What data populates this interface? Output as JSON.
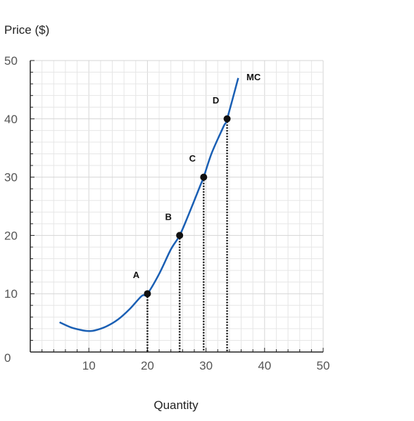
{
  "chart_data": {
    "type": "line",
    "ylabel": "Price ($)",
    "xlabel": "Quantity",
    "xlim": [
      0,
      50
    ],
    "ylim": [
      0,
      50
    ],
    "x_ticks": [
      "10",
      "20",
      "30",
      "40",
      "50"
    ],
    "y_ticks": [
      "0",
      "10",
      "20",
      "30",
      "40",
      "50"
    ],
    "grid": true,
    "minor_grid_step": 2,
    "series": [
      {
        "name": "MC",
        "color": "#1a5fb4",
        "x": [
          5,
          7,
          9,
          10,
          11,
          13,
          15,
          17,
          19,
          20,
          22,
          24,
          25.5,
          27,
          29,
          29.6,
          31,
          33,
          33.6,
          35.5
        ],
        "y": [
          5.1,
          4.2,
          3.7,
          3.6,
          3.7,
          4.4,
          5.6,
          7.4,
          9.6,
          10,
          13.4,
          17.6,
          20,
          23.5,
          28.5,
          30,
          34.2,
          38.7,
          40,
          47
        ]
      }
    ],
    "points": [
      {
        "label": "A",
        "x": 20,
        "y": 10
      },
      {
        "label": "B",
        "x": 25.5,
        "y": 20
      },
      {
        "label": "C",
        "x": 29.6,
        "y": 30
      },
      {
        "label": "D",
        "x": 33.6,
        "y": 40
      }
    ]
  }
}
